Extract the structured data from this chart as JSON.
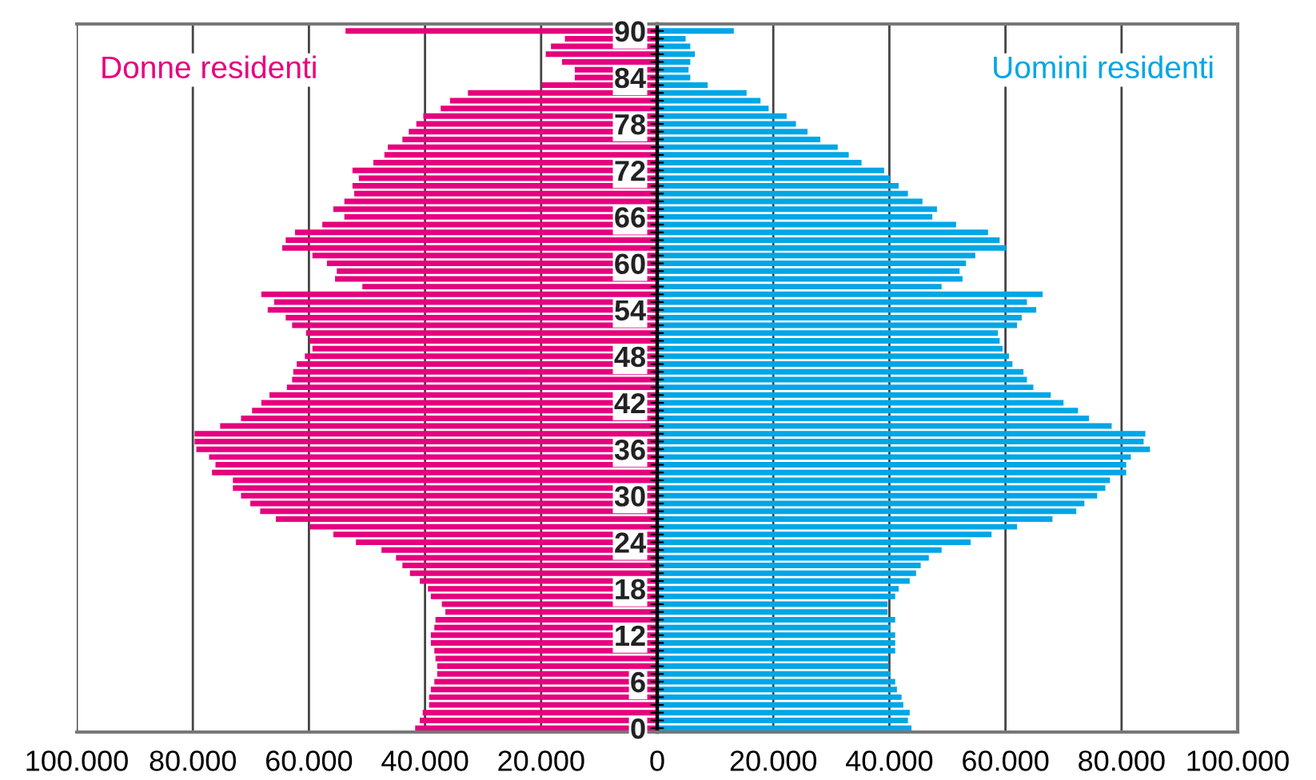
{
  "chart_data": {
    "type": "bar",
    "orientation": "horizontal",
    "categories": [
      "90",
      null,
      null,
      null,
      null,
      null,
      "84",
      null,
      null,
      null,
      null,
      null,
      "78",
      null,
      null,
      null,
      null,
      null,
      "72",
      null,
      null,
      null,
      null,
      null,
      "66",
      null,
      null,
      null,
      null,
      null,
      "60",
      null,
      null,
      null,
      null,
      null,
      "54",
      null,
      null,
      null,
      null,
      null,
      "48",
      null,
      null,
      null,
      null,
      null,
      "42",
      null,
      null,
      null,
      null,
      null,
      "36",
      null,
      null,
      null,
      null,
      null,
      "30",
      null,
      null,
      null,
      null,
      null,
      "24",
      null,
      null,
      null,
      null,
      null,
      "18",
      null,
      null,
      null,
      null,
      null,
      "12",
      null,
      null,
      null,
      null,
      null,
      "6",
      null,
      null,
      null,
      null,
      null,
      "0"
    ],
    "series": [
      {
        "name": "Donne residenti",
        "color": "#e6007e",
        "values": [
          -53700,
          -15900,
          -18300,
          -19200,
          -16400,
          -14200,
          -14200,
          -19900,
          -32600,
          -35700,
          -37300,
          -40300,
          -41500,
          -42800,
          -43900,
          -46400,
          -47000,
          -48900,
          -52500,
          -51400,
          -52500,
          -52200,
          -53900,
          -55800,
          -53900,
          -57700,
          -62400,
          -64000,
          -64600,
          -59400,
          -56900,
          -55200,
          -55500,
          -50800,
          -68200,
          -66000,
          -67100,
          -64000,
          -62900,
          -60500,
          -59900,
          -59400,
          -60700,
          -62100,
          -62700,
          -62900,
          -63800,
          -66800,
          -68200,
          -69800,
          -71700,
          -75300,
          -79700,
          -79700,
          -79400,
          -77200,
          -76100,
          -76700,
          -73100,
          -73100,
          -71700,
          -70100,
          -68400,
          -65700,
          -59900,
          -55800,
          -51900,
          -47500,
          -45000,
          -43900,
          -42600,
          -40900,
          -39500,
          -39000,
          -37100,
          -36500,
          -38200,
          -38400,
          -39000,
          -39000,
          -38400,
          -38200,
          -37900,
          -37900,
          -38400,
          -39000,
          -39300,
          -39300,
          -40400,
          -40900,
          -41700
        ]
      },
      {
        "name": "Uomini residenti",
        "color": "#00a6e6",
        "values": [
          13200,
          4900,
          5700,
          6500,
          5700,
          5400,
          5700,
          8700,
          15400,
          17800,
          19200,
          22300,
          23900,
          25900,
          28100,
          31100,
          33000,
          35200,
          39100,
          40100,
          41600,
          43200,
          45700,
          48200,
          47400,
          51500,
          57000,
          59000,
          60100,
          54800,
          53200,
          52100,
          52600,
          49000,
          66400,
          63700,
          65300,
          62800,
          62000,
          58700,
          59000,
          59500,
          60600,
          61200,
          63100,
          63700,
          64800,
          67800,
          70000,
          72500,
          74400,
          78300,
          84100,
          83800,
          84900,
          81600,
          80800,
          80800,
          78000,
          77200,
          75800,
          73600,
          72200,
          68100,
          62000,
          57600,
          54000,
          49000,
          46800,
          45400,
          44600,
          43500,
          41600,
          41000,
          39700,
          39700,
          41000,
          40200,
          41000,
          41000,
          41000,
          39900,
          39900,
          40200,
          41000,
          41300,
          42100,
          42400,
          43500,
          43200,
          43800
        ]
      }
    ],
    "xlim": [
      -100000,
      100000
    ],
    "xticks": [
      {
        "value": -100000,
        "label": "100.000"
      },
      {
        "value": -80000,
        "label": "80.000"
      },
      {
        "value": -60000,
        "label": "60.000"
      },
      {
        "value": -40000,
        "label": "40.000"
      },
      {
        "value": -20000,
        "label": "20.000"
      },
      0,
      {
        "value": 20000,
        "label": "20.000"
      },
      {
        "value": 40000,
        "label": "40.000"
      },
      {
        "value": 60000,
        "label": "60.000"
      },
      {
        "value": 80000,
        "label": "80.000"
      },
      {
        "value": 100000,
        "label": "100.000"
      }
    ],
    "grid": "x",
    "legend": false,
    "stacked": true
  }
}
